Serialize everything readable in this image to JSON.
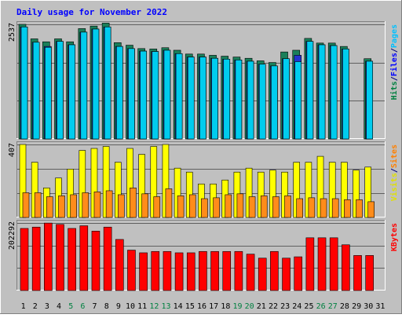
{
  "chart_data": {
    "type": "bar",
    "title": "Daily usage for November 2022",
    "categories": [
      "1",
      "2",
      "3",
      "4",
      "5",
      "6",
      "7",
      "8",
      "9",
      "10",
      "11",
      "12",
      "13",
      "14",
      "15",
      "16",
      "17",
      "18",
      "19",
      "20",
      "21",
      "22",
      "23",
      "24",
      "25",
      "26",
      "27",
      "28",
      "29",
      "30",
      "31"
    ],
    "weekend_days": [
      5,
      6,
      12,
      13,
      19,
      20,
      26,
      27
    ],
    "panels": [
      {
        "id": "hits-files-pages",
        "ymax_label": "2537",
        "ymax": 2537,
        "right_labels": [
          {
            "text": "Hits",
            "color": "#008040"
          },
          {
            "text": "/",
            "color": "#000080"
          },
          {
            "text": "Files",
            "color": "#0000ff"
          },
          {
            "text": "/",
            "color": "#000080"
          },
          {
            "text": "Pages",
            "color": "#00c0ff"
          }
        ],
        "series": [
          {
            "name": "Hits",
            "color": "#1a7f5a",
            "values": [
              2537,
              2216,
              2151,
              2216,
              2151,
              2443,
              2499,
              2565,
              2132,
              2076,
              2001,
              1992,
              2020,
              1964,
              1880,
              1880,
              1852,
              1833,
              1814,
              1786,
              1730,
              1693,
              1926,
              1964,
              2226,
              2123,
              2123,
              2048,
              null,
              1777,
              0
            ]
          },
          {
            "name": "Files",
            "color": "#2233cc",
            "values": [
              2480,
              2141,
              2048,
              2160,
              2085,
              2365,
              2433,
              2480,
              2048,
              2001,
              1945,
              1936,
              1964,
              1889,
              1814,
              1814,
              1786,
              1767,
              1749,
              1721,
              1655,
              1618,
              1777,
              1852,
              2160,
              2085,
              2067,
              1992,
              null,
              1721,
              0
            ]
          },
          {
            "name": "Pages",
            "color": "#00ccee",
            "values": [
              2480,
              2141,
              2029,
              2160,
              2085,
              2365,
              2433,
              2480,
              2048,
              2001,
              1945,
              1936,
              1964,
              1889,
              1814,
              1814,
              1786,
              1767,
              1749,
              1721,
              1655,
              1618,
              1777,
              1711,
              2160,
              2085,
              2067,
              1992,
              null,
              1721,
              0
            ]
          }
        ]
      },
      {
        "id": "visits-sites",
        "ymax_label": "407",
        "ymax": 407,
        "right_labels": [
          {
            "text": "Visits",
            "color": "#e0e000"
          },
          {
            "text": "/",
            "color": "#000080"
          },
          {
            "text": "Sites",
            "color": "#ff8000"
          }
        ],
        "series": [
          {
            "name": "Visits",
            "color": "#ffff00",
            "values": [
              407,
              308,
              165,
              220,
              270,
              374,
              385,
              396,
              308,
              385,
              352,
              396,
              407,
              275,
              253,
              187,
              187,
              209,
              253,
              275,
              253,
              264,
              253,
              308,
              308,
              341,
              308,
              308,
              264,
              281,
              0
            ]
          },
          {
            "name": "Sites",
            "color": "#ff8c1a",
            "values": [
              138,
              138,
              116,
              121,
              127,
              138,
              143,
              149,
              127,
              165,
              132,
              116,
              160,
              121,
              127,
              105,
              110,
              127,
              132,
              116,
              121,
              116,
              121,
              105,
              110,
              105,
              105,
              99,
              99,
              88,
              0
            ]
          }
        ]
      },
      {
        "id": "kbytes",
        "ymax_label": "202292",
        "ymax": 202292,
        "right_labels": [
          {
            "text": "KBytes",
            "color": "#ff0000"
          }
        ],
        "series": [
          {
            "name": "KBytes",
            "color": "#ff0000",
            "values": [
              186000,
              190000,
              202000,
              198000,
              186000,
              194000,
              178000,
              190000,
              153000,
              121000,
              113000,
              117000,
              117000,
              113000,
              113000,
              117000,
              117000,
              117000,
              117000,
              109000,
              97000,
              117000,
              97000,
              101000,
              158000,
              158000,
              158000,
              137000,
              105000,
              105000,
              0
            ]
          }
        ]
      }
    ]
  }
}
